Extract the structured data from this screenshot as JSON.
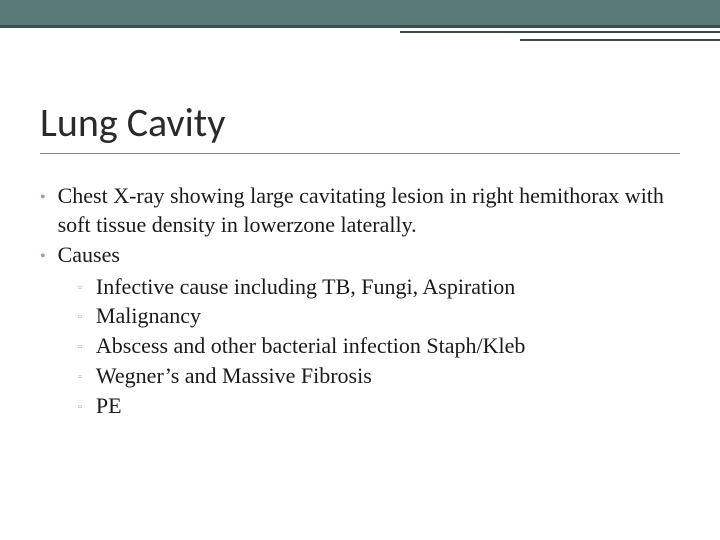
{
  "slide": {
    "title": "Lung Cavity",
    "bullets": [
      {
        "text": "Chest X-ray showing large cavitating lesion in right hemithorax with soft tissue density in lowerzone laterally."
      },
      {
        "text": "Causes",
        "sub": [
          "Infective cause including TB, Fungi, Aspiration",
          "Malignancy",
          "Abscess and other bacterial infection Staph/Kleb",
          "Wegner’s and Massive Fibrosis",
          "PE"
        ]
      }
    ]
  },
  "style": {
    "topbar_color": "#5a7a7a",
    "topbar_border": "#3a5050",
    "bullet_marker_color": "#8aa5a5",
    "title_fontsize": 40,
    "body_fontsize": 22
  }
}
